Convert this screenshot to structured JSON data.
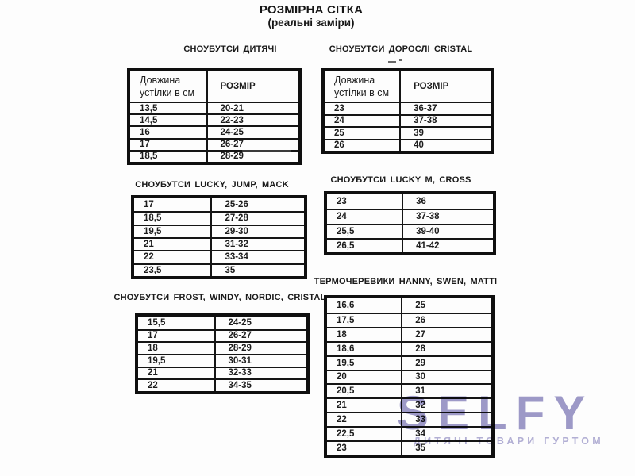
{
  "page": {
    "title": "РОЗМІРНА СІТКА",
    "subtitle": "(реальні заміри)"
  },
  "tables": [
    {
      "caption": "СНОУБУТСИ ДИТЯЧІ",
      "header": [
        "Довжина устілки в см",
        "РОЗМІР"
      ],
      "rows": [
        [
          "13,5",
          "20-21"
        ],
        [
          "14,5",
          "22-23"
        ],
        [
          "16",
          "24-25"
        ],
        [
          "17",
          "26-27"
        ],
        [
          "18,5",
          "28-29"
        ]
      ]
    },
    {
      "caption": "СНОУБУТСИ ДОРОСЛІ CRISTAL",
      "header": [
        "Довжина устілки в см",
        "РОЗМІР"
      ],
      "rows": [
        [
          "23",
          "36-37"
        ],
        [
          "24",
          "37-38"
        ],
        [
          "25",
          "39"
        ],
        [
          "26",
          "40"
        ]
      ]
    },
    {
      "caption": "СНОУБУТСИ LUCKY, JUMP, MACK",
      "rows": [
        [
          "17",
          "25-26"
        ],
        [
          "18,5",
          "27-28"
        ],
        [
          "19,5",
          "29-30"
        ],
        [
          "21",
          "31-32"
        ],
        [
          "22",
          "33-34"
        ],
        [
          "23,5",
          "35"
        ]
      ]
    },
    {
      "caption": "СНОУБУТСИ LUCKY M, CROSS",
      "rows": [
        [
          "23",
          "36"
        ],
        [
          "24",
          "37-38"
        ],
        [
          "25,5",
          "39-40"
        ],
        [
          "26,5",
          "41-42"
        ]
      ]
    },
    {
      "caption": "СНОУБУТСИ FROST, WINDY, NORDIC, CRISTAL",
      "rows": [
        [
          "15,5",
          "24-25"
        ],
        [
          "17",
          "26-27"
        ],
        [
          "18",
          "28-29"
        ],
        [
          "19,5",
          "30-31"
        ],
        [
          "21",
          "32-33"
        ],
        [
          "22",
          "34-35"
        ]
      ]
    },
    {
      "caption": "ТЕРМОЧЕРЕВИКИ HANNY, SWEN, MATTI",
      "rows": [
        [
          "16,6",
          "25"
        ],
        [
          "17,5",
          "26"
        ],
        [
          "18",
          "27"
        ],
        [
          "18,6",
          "28"
        ],
        [
          "19,5",
          "29"
        ],
        [
          "20",
          "30"
        ],
        [
          "20,5",
          "31"
        ],
        [
          "21",
          "32"
        ],
        [
          "22",
          "33"
        ],
        [
          "22,5",
          "34"
        ],
        [
          "23",
          "35"
        ]
      ]
    }
  ],
  "watermark": {
    "logo": "SELFY",
    "tagline": "ДИТЯЧІ ТОВАРИ ГУРТОМ",
    "logo_color": "#9e9ac9",
    "tagline_color": "#b4b1d6"
  }
}
